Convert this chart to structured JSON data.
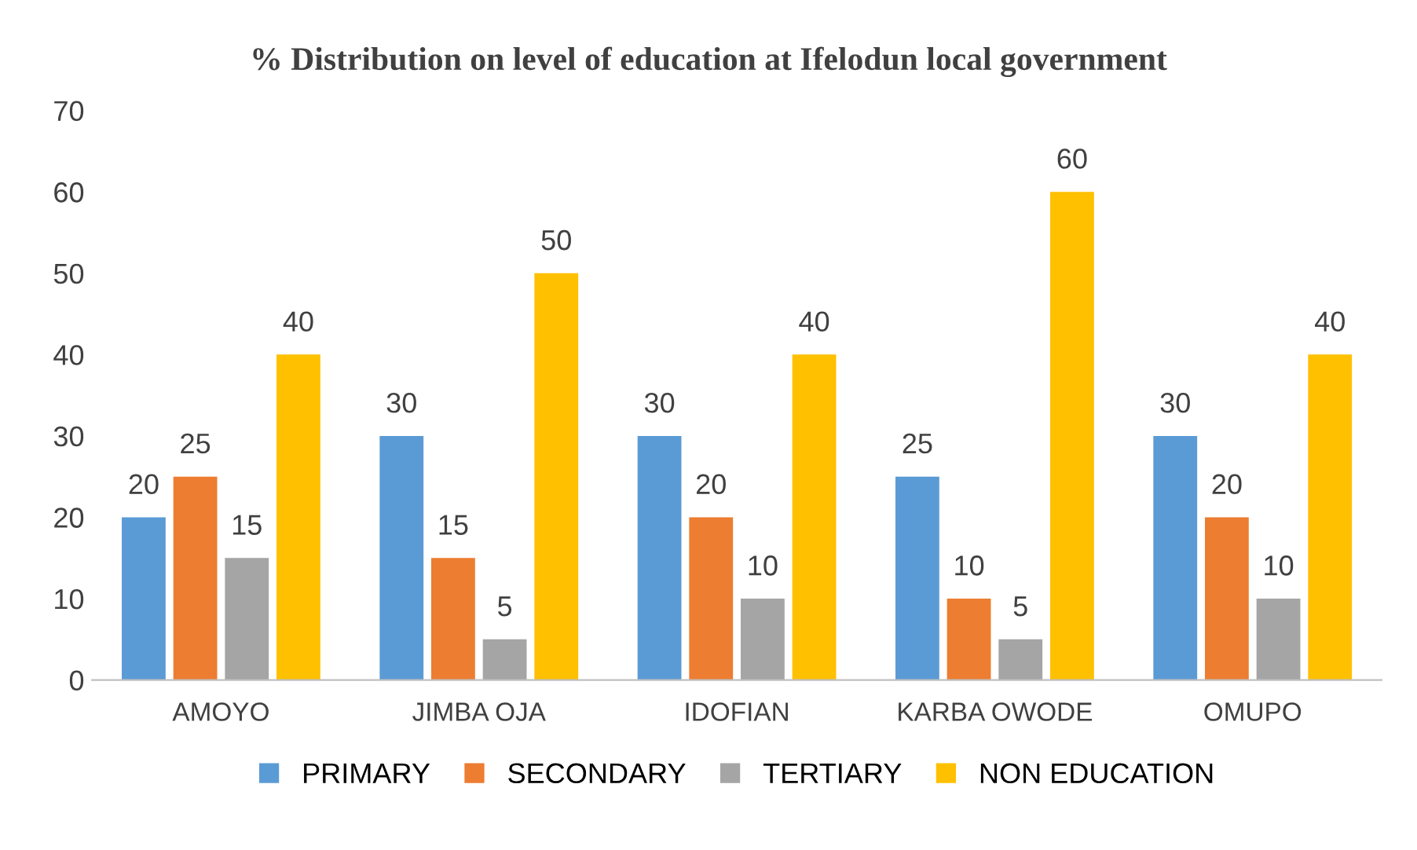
{
  "chart_data": {
    "type": "bar",
    "title": "% Distribution on level of education at Ifelodun local government",
    "categories": [
      "AMOYO",
      "JIMBA OJA",
      "IDOFIAN",
      "KARBA OWODE",
      "OMUPO"
    ],
    "series": [
      {
        "name": "PRIMARY",
        "color": "#5b9bd5",
        "values": [
          20,
          30,
          30,
          25,
          30
        ]
      },
      {
        "name": "SECONDARY",
        "color": "#ed7d31",
        "values": [
          25,
          15,
          20,
          10,
          20
        ]
      },
      {
        "name": "TERTIARY",
        "color": "#a5a5a5",
        "values": [
          15,
          5,
          10,
          5,
          10
        ]
      },
      {
        "name": "NON EDUCATION",
        "color": "#ffc000",
        "values": [
          40,
          50,
          40,
          60,
          40
        ]
      }
    ],
    "ylim": [
      0,
      70
    ],
    "yticks": [
      0,
      10,
      20,
      30,
      40,
      50,
      60,
      70
    ],
    "data_labels": true,
    "grid": false,
    "legend": "bottom"
  }
}
